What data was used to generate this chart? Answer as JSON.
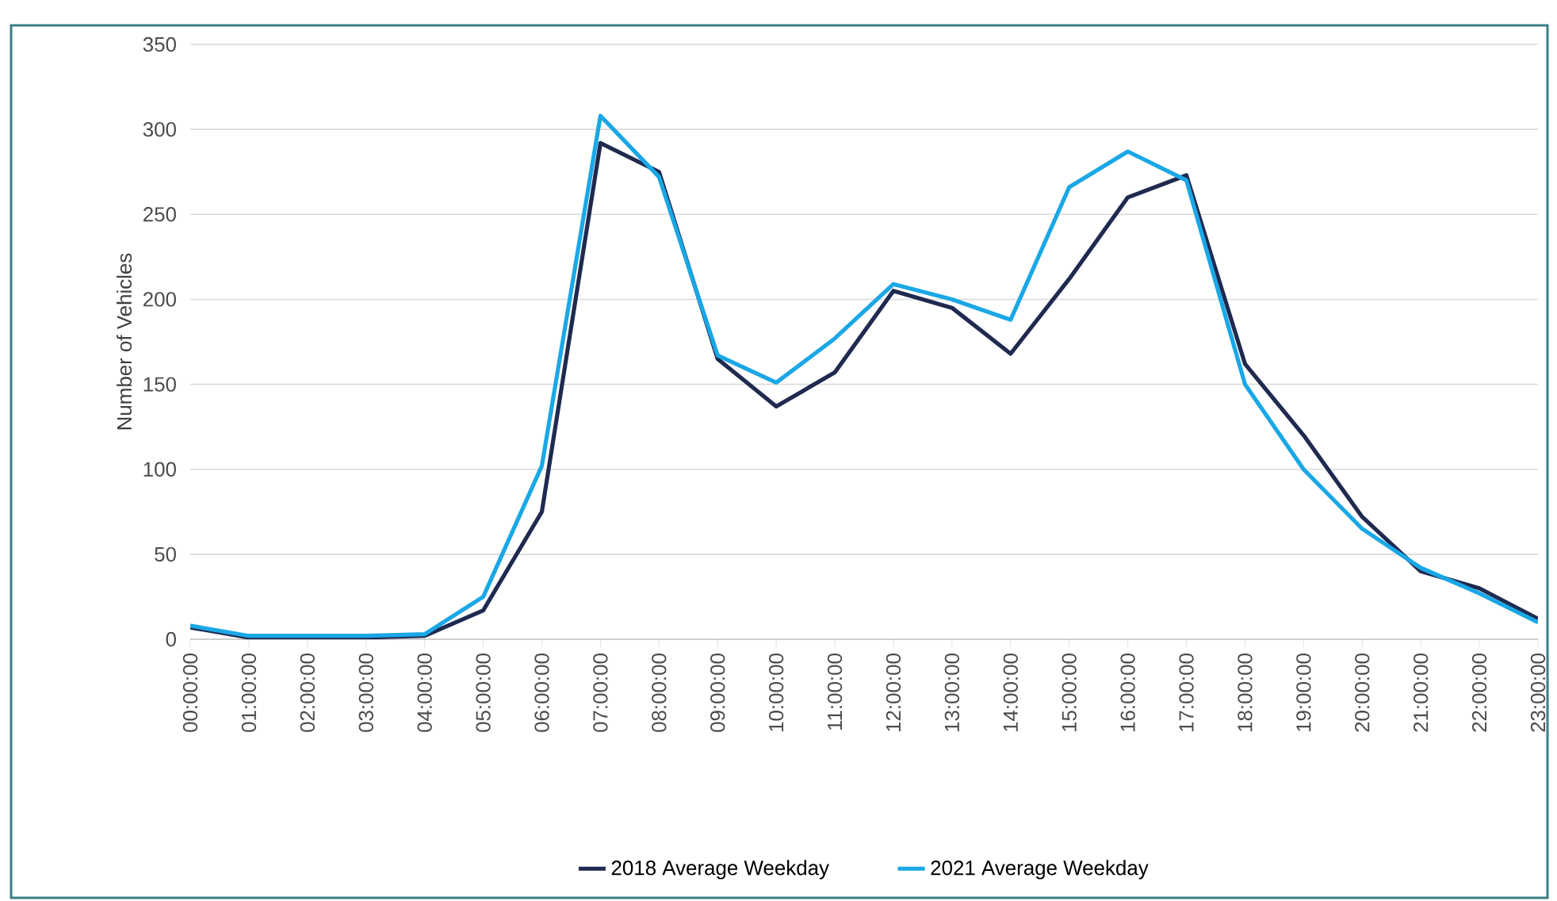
{
  "chart_data": {
    "type": "line",
    "ylabel": "Number of Vehicles",
    "categories": [
      "00:00:00",
      "01:00:00",
      "02:00:00",
      "03:00:00",
      "04:00:00",
      "05:00:00",
      "06:00:00",
      "07:00:00",
      "08:00:00",
      "09:00:00",
      "10:00:00",
      "11:00:00",
      "12:00:00",
      "13:00:00",
      "14:00:00",
      "15:00:00",
      "16:00:00",
      "17:00:00",
      "18:00:00",
      "19:00:00",
      "20:00:00",
      "21:00:00",
      "22:00:00",
      "23:00:00"
    ],
    "series": [
      {
        "name": "2018 Average Weekday",
        "color": "#1f2a50",
        "values": [
          7,
          1,
          1,
          1,
          2,
          17,
          75,
          292,
          275,
          165,
          137,
          157,
          205,
          195,
          168,
          212,
          260,
          273,
          162,
          120,
          72,
          40,
          30,
          12
        ]
      },
      {
        "name": "2021 Average Weekday",
        "color": "#1aa7e6",
        "values": [
          8,
          2,
          2,
          2,
          3,
          25,
          102,
          308,
          272,
          167,
          151,
          177,
          209,
          200,
          188,
          266,
          287,
          270,
          150,
          100,
          65,
          42,
          27,
          10
        ]
      }
    ],
    "ylim": [
      0,
      350
    ],
    "yticks": [
      0,
      50,
      100,
      150,
      200,
      250,
      300,
      350
    ],
    "grid": "y",
    "legend": "bottom"
  }
}
